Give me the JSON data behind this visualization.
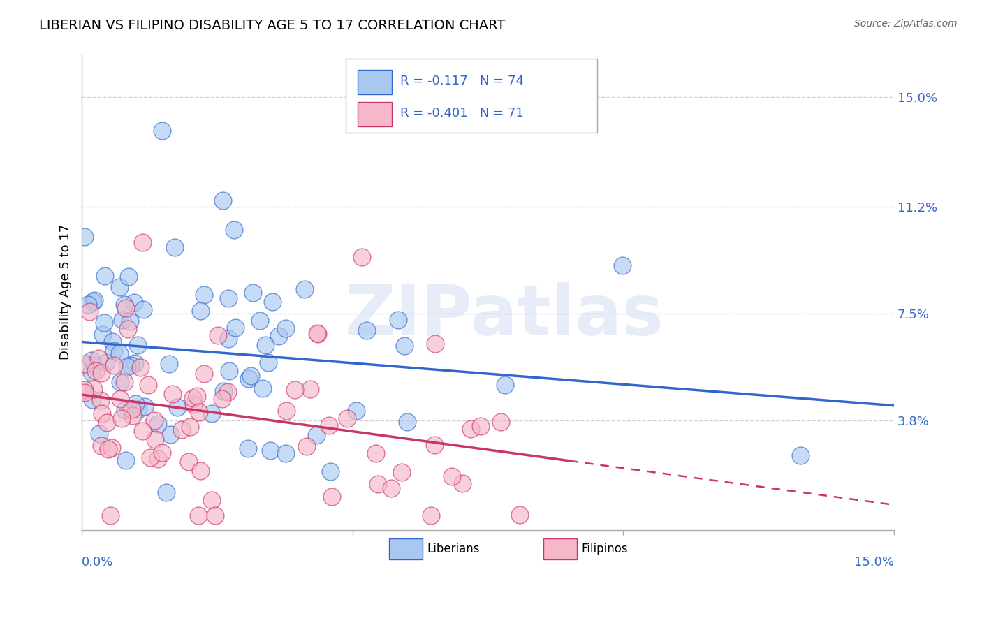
{
  "title": "LIBERIAN VS FILIPINO DISABILITY AGE 5 TO 17 CORRELATION CHART",
  "source": "Source: ZipAtlas.com",
  "ylabel": "Disability Age 5 to 17",
  "y_tick_labels": [
    "15.0%",
    "11.2%",
    "7.5%",
    "3.8%"
  ],
  "y_tick_values": [
    0.15,
    0.112,
    0.075,
    0.038
  ],
  "x_min": 0.0,
  "x_max": 0.15,
  "y_min": 0.0,
  "y_max": 0.165,
  "liberian_R": "-0.117",
  "liberian_N": "74",
  "filipino_R": "-0.401",
  "filipino_N": "71",
  "liberian_color": "#a8c8f0",
  "filipino_color": "#f5b8c8",
  "liberian_line_color": "#3366cc",
  "filipino_line_color": "#cc3366",
  "watermark": "ZIPatlas"
}
